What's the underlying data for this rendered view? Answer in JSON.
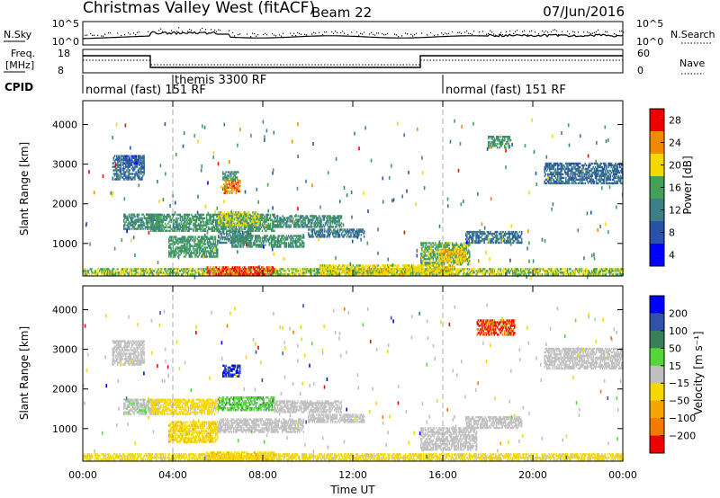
{
  "header": {
    "station": "Christmas Valley West (fitACF)",
    "beam": "Beam 22",
    "date": "07/Jun/2016"
  },
  "top_panels": {
    "nsky_label": "N.Sky",
    "nsky_ticks": [
      "10^5",
      "10^0"
    ],
    "nsearch_label": "N.Search",
    "nsearch_ticks": [
      "10^5",
      "10^0"
    ],
    "freq_label_line1": "Freq.",
    "freq_label_line2": "[MHz]",
    "freq_ticks": [
      "18",
      "8"
    ],
    "nave_label": "Nave",
    "nave_ticks": [
      "60",
      "0"
    ],
    "cpid_label": "CPID",
    "cpid_segments": [
      {
        "start_h": 0,
        "label": "normal (fast) 151 RF"
      },
      {
        "start_h": 4,
        "label": "themis 3300 RF"
      },
      {
        "start_h": 16,
        "label": "normal (fast) 151 RF"
      }
    ]
  },
  "colors": {
    "power_scale": [
      "#0000ff",
      "#2a52a8",
      "#3d7f86",
      "#44a058",
      "#f5d800",
      "#f28a00",
      "#ef0000"
    ],
    "velocity_scale": [
      "#0000ff",
      "#3152a8",
      "#3a7f5c",
      "#55d63a",
      "#c0c0c0",
      "#f5d800",
      "#f5a600",
      "#f27a00",
      "#ef0000"
    ]
  },
  "chart_data": [
    {
      "type": "heatmap",
      "name": "power-panel",
      "xlabel": "Time UT",
      "ylabel": "Slant Range [km]",
      "xlim": [
        0,
        24
      ],
      "ylim": [
        180,
        4600
      ],
      "x_ticks": [
        "00:00",
        "04:00",
        "08:00",
        "12:00",
        "16:00",
        "20:00",
        "00:00"
      ],
      "y_ticks": [
        1000,
        2000,
        3000,
        4000
      ],
      "colorbar_label": "Power [dB]",
      "colorbar_ticks": [
        4,
        8,
        12,
        16,
        20,
        24,
        28
      ],
      "colorbar_range": [
        0,
        30
      ],
      "regions": [
        {
          "t": [
            1.3,
            2.7
          ],
          "r": [
            2600,
            3200
          ],
          "v": 9
        },
        {
          "t": [
            1.8,
            2.6
          ],
          "r": [
            3000,
            3200
          ],
          "v": 6
        },
        {
          "t": [
            1.8,
            3.4
          ],
          "r": [
            1350,
            1750
          ],
          "v": 12
        },
        {
          "t": [
            3.0,
            8.5
          ],
          "r": [
            1300,
            1750
          ],
          "v": 14
        },
        {
          "t": [
            6.0,
            7.8
          ],
          "r": [
            1450,
            1800
          ],
          "v": 18
        },
        {
          "t": [
            8.5,
            11.5
          ],
          "r": [
            1400,
            1700
          ],
          "v": 12
        },
        {
          "t": [
            3.8,
            6.0
          ],
          "r": [
            650,
            1150
          ],
          "v": 14
        },
        {
          "t": [
            6.0,
            7.5
          ],
          "r": [
            1000,
            1300
          ],
          "v": 11
        },
        {
          "t": [
            6.6,
            9.8
          ],
          "r": [
            900,
            1200
          ],
          "v": 13
        },
        {
          "t": [
            10.0,
            12.5
          ],
          "r": [
            1150,
            1350
          ],
          "v": 10
        },
        {
          "t": [
            6.2,
            7.0
          ],
          "r": [
            2250,
            2600
          ],
          "v": 24
        },
        {
          "t": [
            6.2,
            6.9
          ],
          "r": [
            2600,
            2800
          ],
          "v": 13
        },
        {
          "t": [
            15.0,
            17.2
          ],
          "r": [
            450,
            1000
          ],
          "v": 16
        },
        {
          "t": [
            15.8,
            17.0
          ],
          "r": [
            550,
            850
          ],
          "v": 20
        },
        {
          "t": [
            17.0,
            19.5
          ],
          "r": [
            1000,
            1300
          ],
          "v": 10
        },
        {
          "t": [
            18.0,
            19.0
          ],
          "r": [
            3400,
            3700
          ],
          "v": 14
        },
        {
          "t": [
            20.5,
            24.0
          ],
          "r": [
            2500,
            3000
          ],
          "v": 9
        },
        {
          "t": [
            0.0,
            24.0
          ],
          "r": [
            200,
            380
          ],
          "v": 17
        },
        {
          "t": [
            5.5,
            8.5
          ],
          "r": [
            200,
            420
          ],
          "v": 26
        },
        {
          "t": [
            10.5,
            16.5
          ],
          "r": [
            200,
            450
          ],
          "v": 19
        }
      ]
    },
    {
      "type": "heatmap",
      "name": "velocity-panel",
      "xlabel": "Time UT",
      "ylabel": "Slant Range [km]",
      "xlim": [
        0,
        24
      ],
      "ylim": [
        180,
        4600
      ],
      "x_ticks": [
        "00:00",
        "04:00",
        "08:00",
        "12:00",
        "16:00",
        "20:00",
        "00:00"
      ],
      "y_ticks": [
        1000,
        2000,
        3000,
        4000
      ],
      "colorbar_label": "Velocity [m s⁻¹]",
      "colorbar_ticks": [
        "200",
        "100",
        "50",
        "15",
        "−15",
        "−50",
        "−100",
        "−200"
      ],
      "colorbar_range": [
        -250,
        250
      ],
      "regions": [
        {
          "t": [
            1.3,
            2.7
          ],
          "r": [
            2600,
            3200
          ],
          "v": 0
        },
        {
          "t": [
            1.8,
            3.4
          ],
          "r": [
            1350,
            1750
          ],
          "v": 5
        },
        {
          "t": [
            3.0,
            6.0
          ],
          "r": [
            1350,
            1750
          ],
          "v": -30
        },
        {
          "t": [
            6.0,
            8.5
          ],
          "r": [
            1450,
            1800
          ],
          "v": 40
        },
        {
          "t": [
            8.5,
            11.5
          ],
          "r": [
            1400,
            1700
          ],
          "v": 0
        },
        {
          "t": [
            3.8,
            6.0
          ],
          "r": [
            650,
            1150
          ],
          "v": -40
        },
        {
          "t": [
            6.0,
            9.8
          ],
          "r": [
            900,
            1250
          ],
          "v": 0
        },
        {
          "t": [
            10.0,
            12.5
          ],
          "r": [
            1150,
            1350
          ],
          "v": 0
        },
        {
          "t": [
            6.2,
            7.0
          ],
          "r": [
            2300,
            2600
          ],
          "v": 200
        },
        {
          "t": [
            15.0,
            17.5
          ],
          "r": [
            450,
            1000
          ],
          "v": 0
        },
        {
          "t": [
            17.0,
            19.5
          ],
          "r": [
            1000,
            1300
          ],
          "v": 0
        },
        {
          "t": [
            17.5,
            19.2
          ],
          "r": [
            3350,
            3750
          ],
          "v": -200
        },
        {
          "t": [
            20.5,
            24.0
          ],
          "r": [
            2500,
            3000
          ],
          "v": 0
        },
        {
          "t": [
            0.0,
            24.0
          ],
          "r": [
            200,
            360
          ],
          "v": -25
        },
        {
          "t": [
            5.5,
            8.5
          ],
          "r": [
            200,
            420
          ],
          "v": -40
        }
      ]
    }
  ]
}
